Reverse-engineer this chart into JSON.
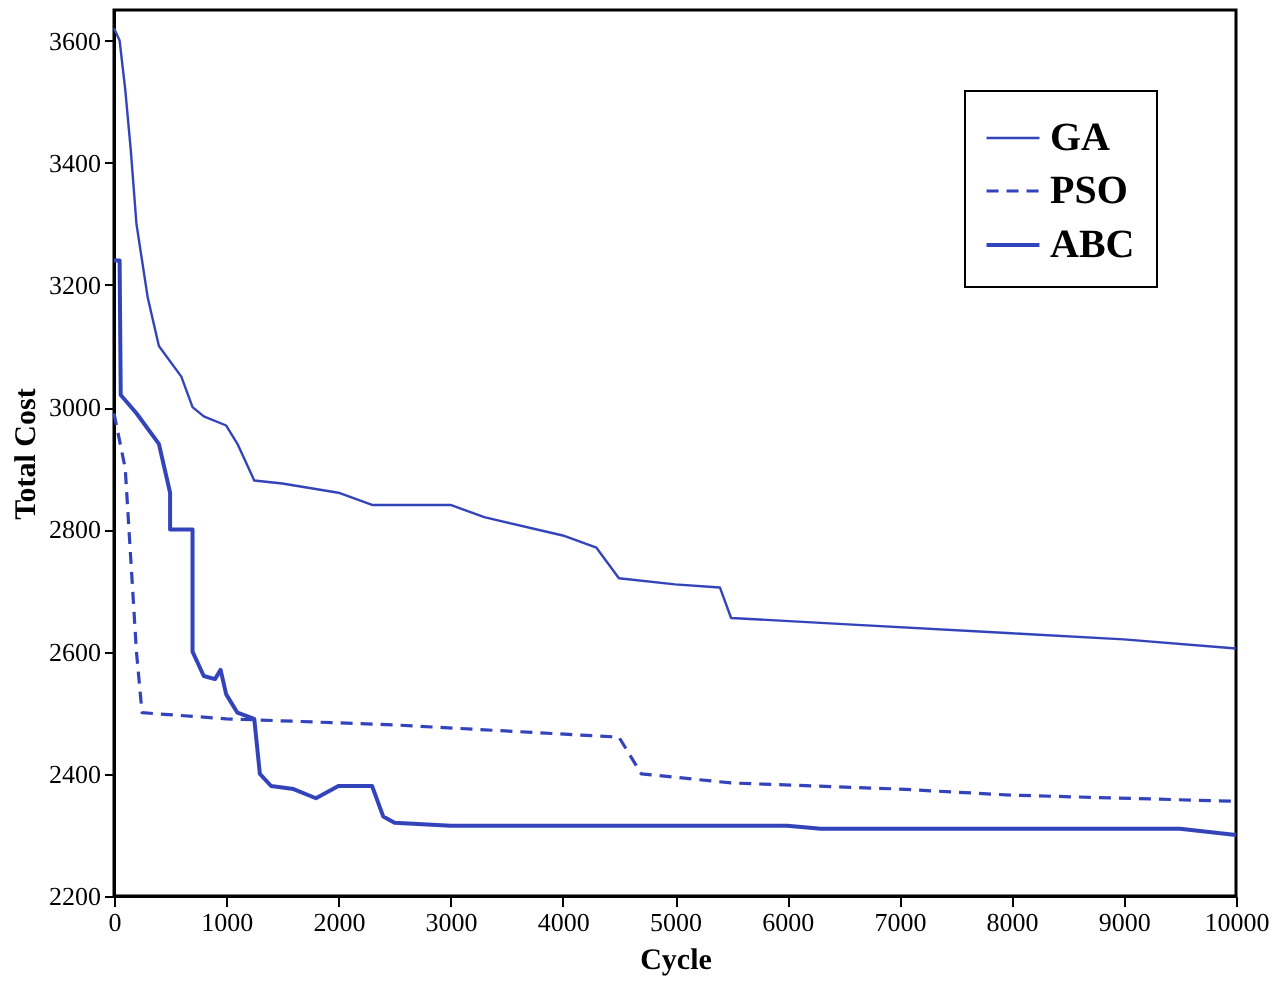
{
  "chart_data": {
    "type": "line",
    "xlabel": "Cycle",
    "ylabel": "Total Cost",
    "xlim": [
      0,
      10000
    ],
    "xticks": [
      0,
      1000,
      2000,
      3000,
      4000,
      5000,
      6000,
      7000,
      8000,
      9000,
      10000
    ],
    "ylim": [
      2200,
      3650
    ],
    "yticks": [
      2200,
      2400,
      2600,
      2800,
      3000,
      3200,
      3400,
      3600
    ],
    "grid": false,
    "legend": "top right",
    "marker": "none",
    "series": [
      {
        "name": "GA",
        "color": "#3344bb",
        "line_style": "solid",
        "x": [
          0,
          50,
          100,
          150,
          200,
          300,
          400,
          600,
          700,
          800,
          1000,
          1100,
          1250,
          1500,
          2000,
          2300,
          3000,
          3300,
          4000,
          4300,
          4500,
          5000,
          5400,
          5500,
          6500,
          8000,
          9000,
          10000
        ],
        "values": [
          3620,
          3600,
          3520,
          3420,
          3300,
          3180,
          3100,
          3050,
          3000,
          2985,
          2970,
          2940,
          2880,
          2875,
          2860,
          2840,
          2840,
          2820,
          2790,
          2770,
          2720,
          2710,
          2705,
          2655,
          2645,
          2630,
          2620,
          2605
        ]
      },
      {
        "name": "PSO",
        "color": "#3344bb",
        "line_style": "dashed",
        "x": [
          0,
          100,
          200,
          250,
          1000,
          2500,
          4500,
          4700,
          5500,
          7000,
          8000,
          10000
        ],
        "values": [
          2990,
          2900,
          2600,
          2500,
          2490,
          2480,
          2460,
          2400,
          2385,
          2375,
          2365,
          2355
        ]
      },
      {
        "name": "ABC",
        "color": "#3344bb",
        "line_style": "solid",
        "x": [
          0,
          50,
          60,
          200,
          400,
          500,
          500,
          700,
          700,
          800,
          900,
          950,
          1000,
          1100,
          1250,
          1300,
          1400,
          1600,
          1800,
          2000,
          2300,
          2400,
          2500,
          3000,
          6000,
          6300,
          9500,
          10000
        ],
        "values": [
          3240,
          3240,
          3020,
          2990,
          2940,
          2860,
          2800,
          2800,
          2600,
          2560,
          2555,
          2570,
          2530,
          2500,
          2490,
          2400,
          2380,
          2375,
          2360,
          2380,
          2380,
          2330,
          2320,
          2315,
          2315,
          2310,
          2310,
          2300
        ]
      }
    ]
  }
}
